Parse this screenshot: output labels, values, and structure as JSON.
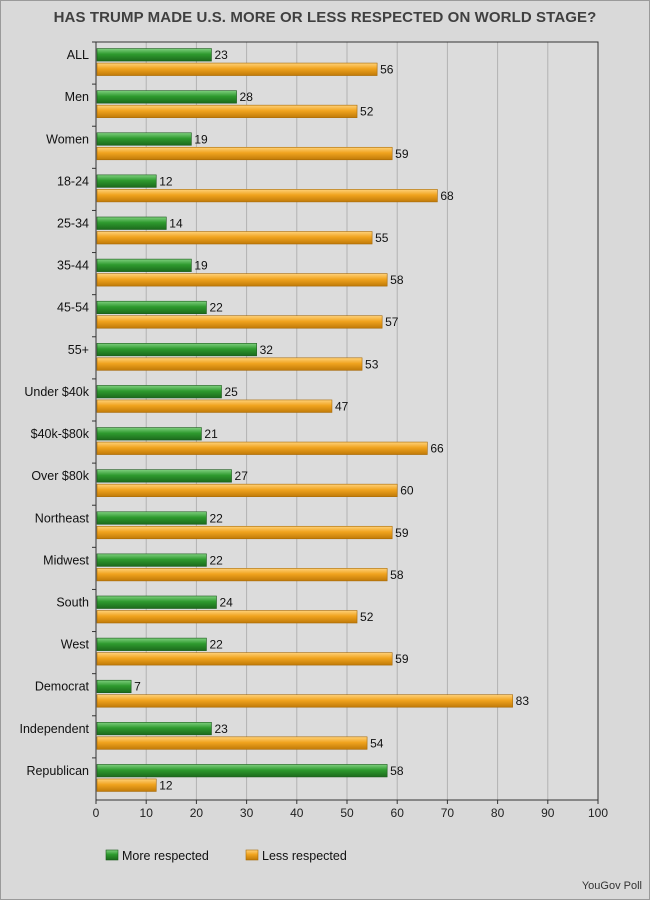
{
  "chart_data": {
    "type": "bar",
    "orientation": "horizontal",
    "title": "HAS TRUMP MADE U.S. MORE OR LESS RESPECTED ON WORLD STAGE?",
    "source": "YouGov Poll",
    "categories": [
      "ALL",
      "Men",
      "Women",
      "18-24",
      "25-34",
      "35-44",
      "45-54",
      "55+",
      "Under $40k",
      "$40k-$80k",
      "Over $80k",
      "Northeast",
      "Midwest",
      "South",
      "West",
      "Democrat",
      "Independent",
      "Republican"
    ],
    "series": [
      {
        "name": "More respected",
        "color": "#2e9a2e",
        "values": [
          23,
          28,
          19,
          12,
          14,
          19,
          22,
          32,
          25,
          21,
          27,
          22,
          22,
          24,
          22,
          7,
          23,
          58
        ]
      },
      {
        "name": "Less respected",
        "color": "#f0a31e",
        "values": [
          56,
          52,
          59,
          68,
          55,
          58,
          57,
          53,
          47,
          66,
          60,
          59,
          58,
          52,
          59,
          83,
          54,
          12
        ]
      }
    ],
    "xlim": [
      0,
      100
    ],
    "xticks": [
      0,
      10,
      20,
      30,
      40,
      50,
      60,
      70,
      80,
      90,
      100
    ],
    "grid": true,
    "legend": "bottom"
  }
}
